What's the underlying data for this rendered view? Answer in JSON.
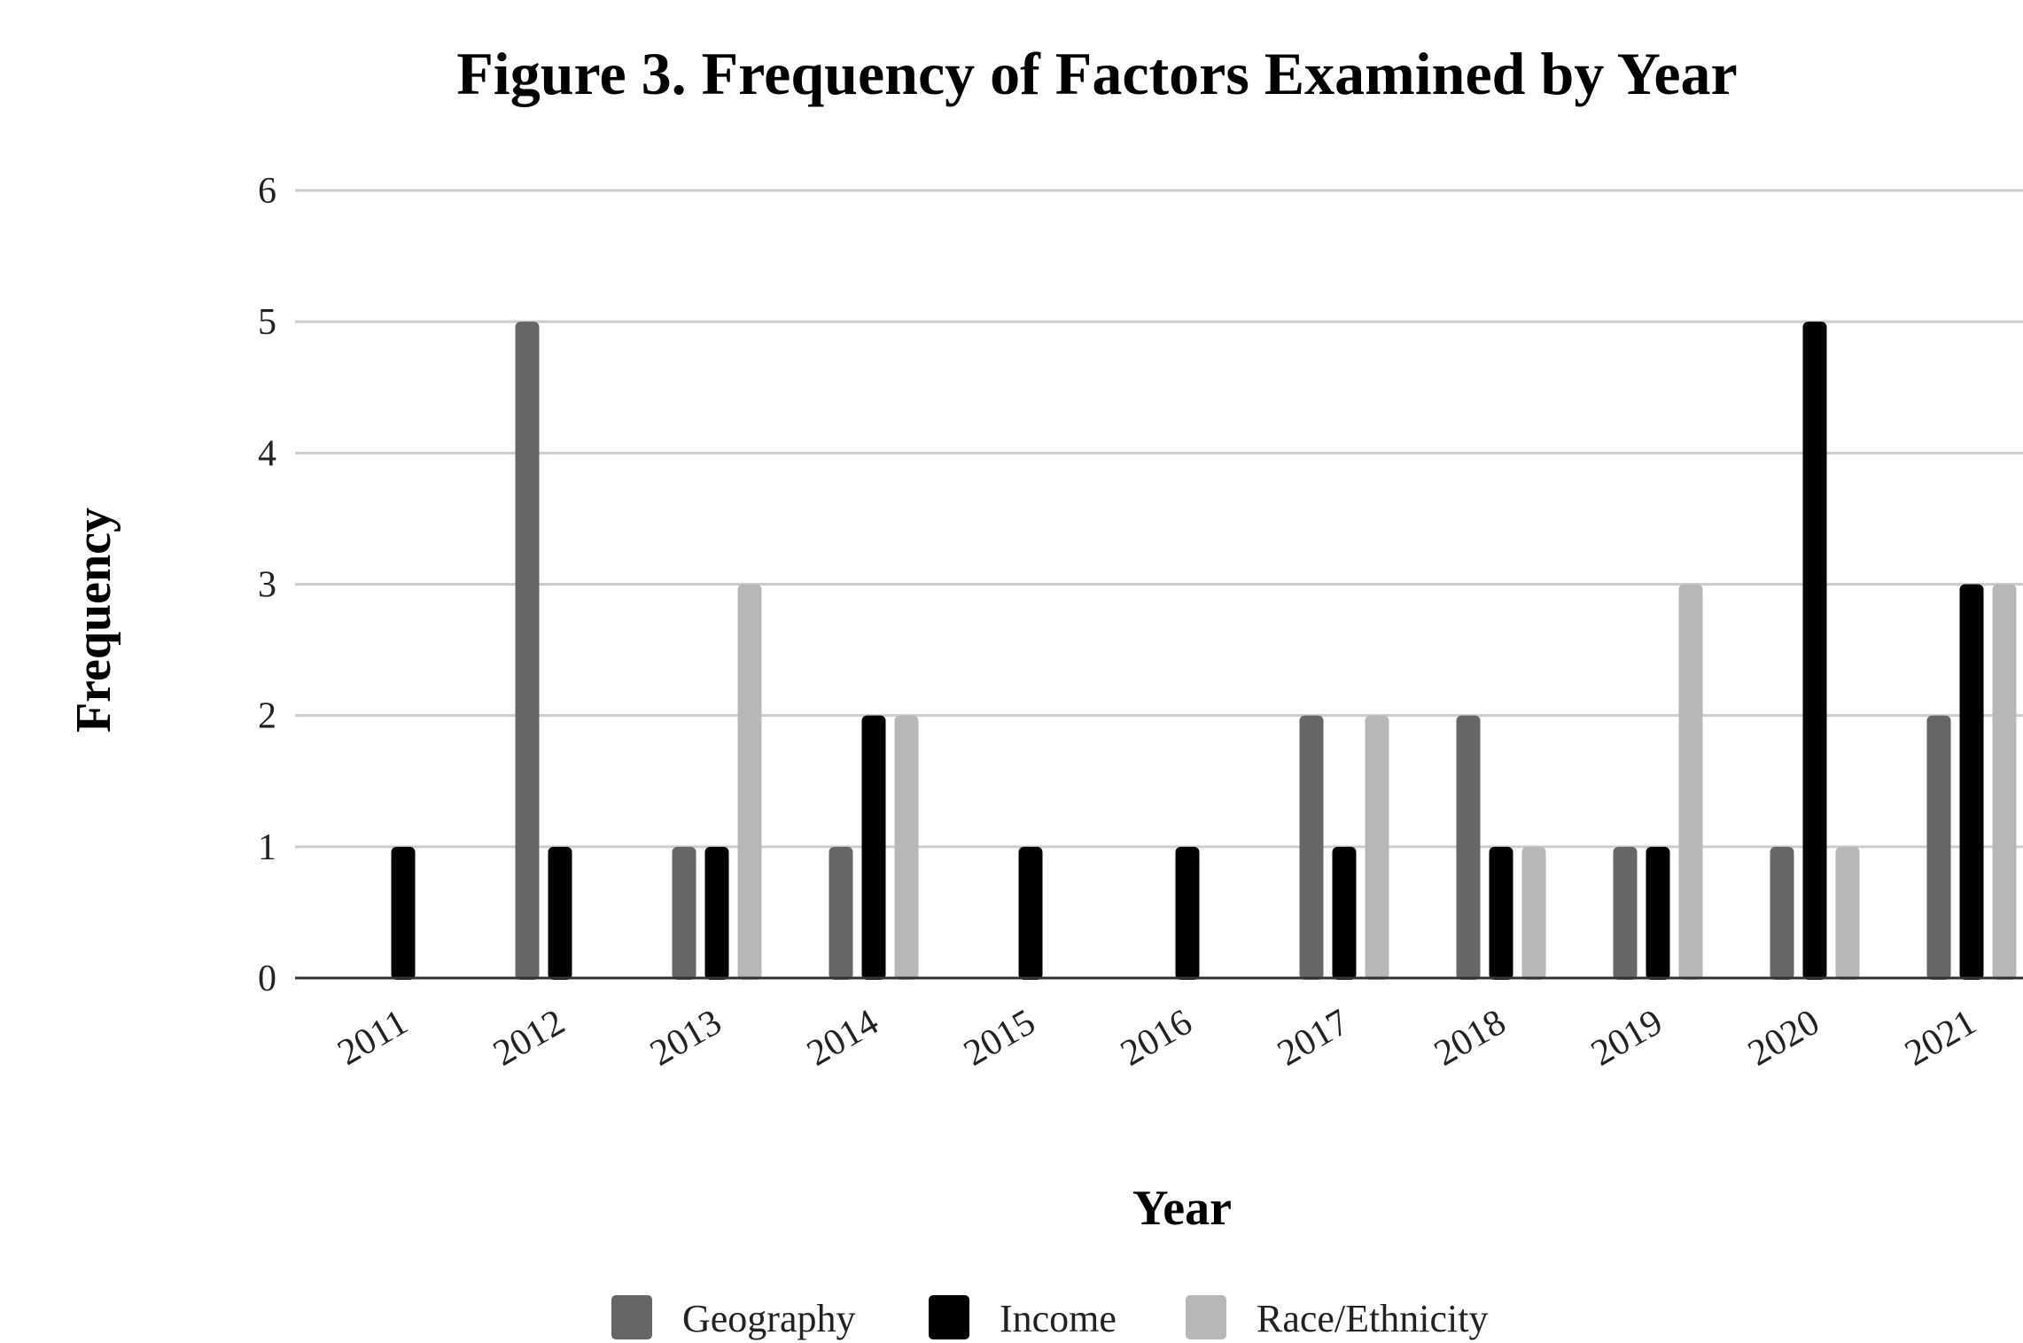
{
  "chart_data": {
    "type": "bar",
    "title": "Figure 3. Frequency of Factors Examined by Year",
    "xlabel": "Year",
    "ylabel": "Frequency",
    "ylim": [
      0,
      6
    ],
    "yticks": [
      0,
      1,
      2,
      3,
      4,
      5,
      6
    ],
    "grid": true,
    "legend_position": "bottom",
    "categories": [
      "2011",
      "2012",
      "2013",
      "2014",
      "2015",
      "2016",
      "2017",
      "2018",
      "2019",
      "2020",
      "2021"
    ],
    "series": [
      {
        "name": "Geography",
        "color": "#666666",
        "values": [
          0,
          5,
          1,
          1,
          0,
          0,
          2,
          2,
          1,
          1,
          2
        ]
      },
      {
        "name": "Income",
        "color": "#000000",
        "values": [
          1,
          1,
          1,
          2,
          1,
          1,
          1,
          1,
          1,
          5,
          3
        ]
      },
      {
        "name": "Race/Ethnicity",
        "color": "#b7b7b7",
        "values": [
          0,
          0,
          3,
          2,
          0,
          0,
          2,
          1,
          3,
          1,
          3
        ]
      }
    ]
  }
}
